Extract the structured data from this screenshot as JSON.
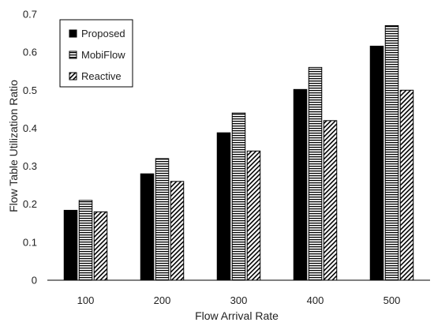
{
  "chart_data": {
    "type": "bar",
    "title": "",
    "xlabel": "Flow Arrival Rate",
    "ylabel": "Flow Table Utilization Ratio",
    "categories": [
      "100",
      "200",
      "300",
      "400",
      "500"
    ],
    "series": [
      {
        "name": "Proposed",
        "values": [
          0.184,
          0.28,
          0.388,
          0.502,
          0.616
        ],
        "pattern": "solid",
        "color": "#000000"
      },
      {
        "name": "MobiFlow",
        "values": [
          0.21,
          0.32,
          0.44,
          0.56,
          0.67
        ],
        "pattern": "horizontal-stripes",
        "color": "#000000"
      },
      {
        "name": "Reactive",
        "values": [
          0.18,
          0.26,
          0.34,
          0.42,
          0.5
        ],
        "pattern": "diagonal-stripes",
        "color": "#000000"
      }
    ],
    "ylim": [
      0,
      0.7
    ],
    "yticks": [
      "0",
      "0.1",
      "0.2",
      "0.3",
      "0.4",
      "0.5",
      "0.6",
      "0.7"
    ],
    "grid": false,
    "legend_position": "top-left"
  }
}
